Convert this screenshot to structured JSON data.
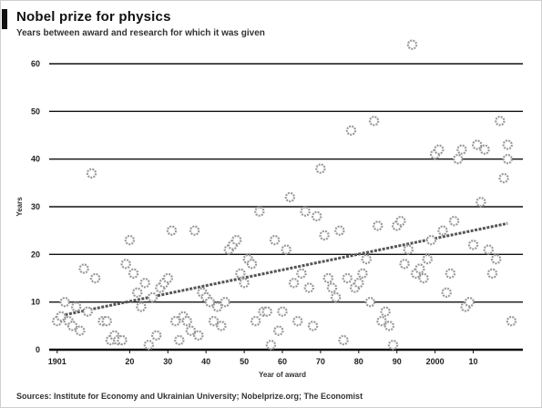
{
  "header": {
    "title": "Nobel prize for physics",
    "subtitle": "Years between award and research for which it was given"
  },
  "footer": {
    "source": "Sources: Institute for Economy and Ukrainian University; Nobelprize.org; The Economist"
  },
  "colors": {
    "point": "#999999",
    "trend": "#555555",
    "grid": "#111111",
    "accent": "#111111"
  },
  "chart_data": {
    "type": "scatter",
    "title": "Nobel prize for physics",
    "subtitle": "Years between award and research for which it was given",
    "xlabel": "Year of award",
    "ylabel": "Years",
    "xlim": [
      1897,
      2023
    ],
    "ylim": [
      0,
      60
    ],
    "x_ticks": [
      {
        "value": 1901,
        "label": "1901"
      },
      {
        "value": 1920,
        "label": "20"
      },
      {
        "value": 1930,
        "label": "30"
      },
      {
        "value": 1940,
        "label": "40"
      },
      {
        "value": 1950,
        "label": "50"
      },
      {
        "value": 1960,
        "label": "60"
      },
      {
        "value": 1970,
        "label": "70"
      },
      {
        "value": 1980,
        "label": "80"
      },
      {
        "value": 1990,
        "label": "90"
      },
      {
        "value": 2000,
        "label": "2000"
      },
      {
        "value": 2010,
        "label": "10"
      }
    ],
    "y_ticks": [
      0,
      10,
      20,
      30,
      40,
      50,
      60
    ],
    "grid": true,
    "trend_line": {
      "x": [
        1901,
        2019
      ],
      "y": [
        7,
        26.5
      ]
    },
    "points": [
      [
        1901,
        6
      ],
      [
        1902,
        7
      ],
      [
        1903,
        10
      ],
      [
        1904,
        6
      ],
      [
        1905,
        5
      ],
      [
        1906,
        9
      ],
      [
        1907,
        4
      ],
      [
        1908,
        17
      ],
      [
        1909,
        8
      ],
      [
        1910,
        37
      ],
      [
        1911,
        15
      ],
      [
        1913,
        6
      ],
      [
        1914,
        6
      ],
      [
        1915,
        2
      ],
      [
        1916,
        3
      ],
      [
        1917,
        2
      ],
      [
        1918,
        2
      ],
      [
        1919,
        18
      ],
      [
        1920,
        23
      ],
      [
        1921,
        16
      ],
      [
        1922,
        12
      ],
      [
        1923,
        9
      ],
      [
        1924,
        14
      ],
      [
        1925,
        1
      ],
      [
        1926,
        11
      ],
      [
        1927,
        3
      ],
      [
        1928,
        13
      ],
      [
        1929,
        14
      ],
      [
        1930,
        15
      ],
      [
        1931,
        25
      ],
      [
        1932,
        6
      ],
      [
        1933,
        2
      ],
      [
        1934,
        7
      ],
      [
        1935,
        6
      ],
      [
        1936,
        4
      ],
      [
        1937,
        25
      ],
      [
        1938,
        3
      ],
      [
        1939,
        12
      ],
      [
        1940,
        11
      ],
      [
        1941,
        10
      ],
      [
        1942,
        6
      ],
      [
        1943,
        9
      ],
      [
        1944,
        5
      ],
      [
        1945,
        10
      ],
      [
        1946,
        21
      ],
      [
        1947,
        22
      ],
      [
        1948,
        23
      ],
      [
        1949,
        16
      ],
      [
        1950,
        14
      ],
      [
        1951,
        19
      ],
      [
        1952,
        18
      ],
      [
        1953,
        6
      ],
      [
        1954,
        29
      ],
      [
        1955,
        8
      ],
      [
        1956,
        8
      ],
      [
        1957,
        1
      ],
      [
        1958,
        23
      ],
      [
        1959,
        4
      ],
      [
        1960,
        8
      ],
      [
        1961,
        21
      ],
      [
        1962,
        32
      ],
      [
        1963,
        14
      ],
      [
        1964,
        6
      ],
      [
        1965,
        16
      ],
      [
        1966,
        29
      ],
      [
        1967,
        13
      ],
      [
        1968,
        5
      ],
      [
        1969,
        28
      ],
      [
        1970,
        38
      ],
      [
        1971,
        24
      ],
      [
        1972,
        15
      ],
      [
        1973,
        13
      ],
      [
        1974,
        11
      ],
      [
        1975,
        25
      ],
      [
        1976,
        2
      ],
      [
        1977,
        15
      ],
      [
        1978,
        46
      ],
      [
        1979,
        13
      ],
      [
        1980,
        14
      ],
      [
        1981,
        16
      ],
      [
        1982,
        19
      ],
      [
        1983,
        10
      ],
      [
        1984,
        48
      ],
      [
        1985,
        26
      ],
      [
        1986,
        6
      ],
      [
        1987,
        8
      ],
      [
        1988,
        5
      ],
      [
        1989,
        1
      ],
      [
        1990,
        26
      ],
      [
        1991,
        27
      ],
      [
        1992,
        18
      ],
      [
        1993,
        21
      ],
      [
        1994,
        64
      ],
      [
        1995,
        16
      ],
      [
        1996,
        17
      ],
      [
        1997,
        15
      ],
      [
        1998,
        19
      ],
      [
        1999,
        23
      ],
      [
        2000,
        41
      ],
      [
        2001,
        42
      ],
      [
        2002,
        25
      ],
      [
        2003,
        12
      ],
      [
        2004,
        16
      ],
      [
        2005,
        27
      ],
      [
        2006,
        40
      ],
      [
        2007,
        42
      ],
      [
        2008,
        9
      ],
      [
        2009,
        10
      ],
      [
        2010,
        22
      ],
      [
        2011,
        43
      ],
      [
        2012,
        31
      ],
      [
        2013,
        42
      ],
      [
        2014,
        21
      ],
      [
        2015,
        16
      ],
      [
        2016,
        19
      ],
      [
        2017,
        48
      ],
      [
        2018,
        36
      ],
      [
        2019,
        43
      ],
      [
        2019,
        40
      ],
      [
        2020,
        6
      ]
    ]
  }
}
